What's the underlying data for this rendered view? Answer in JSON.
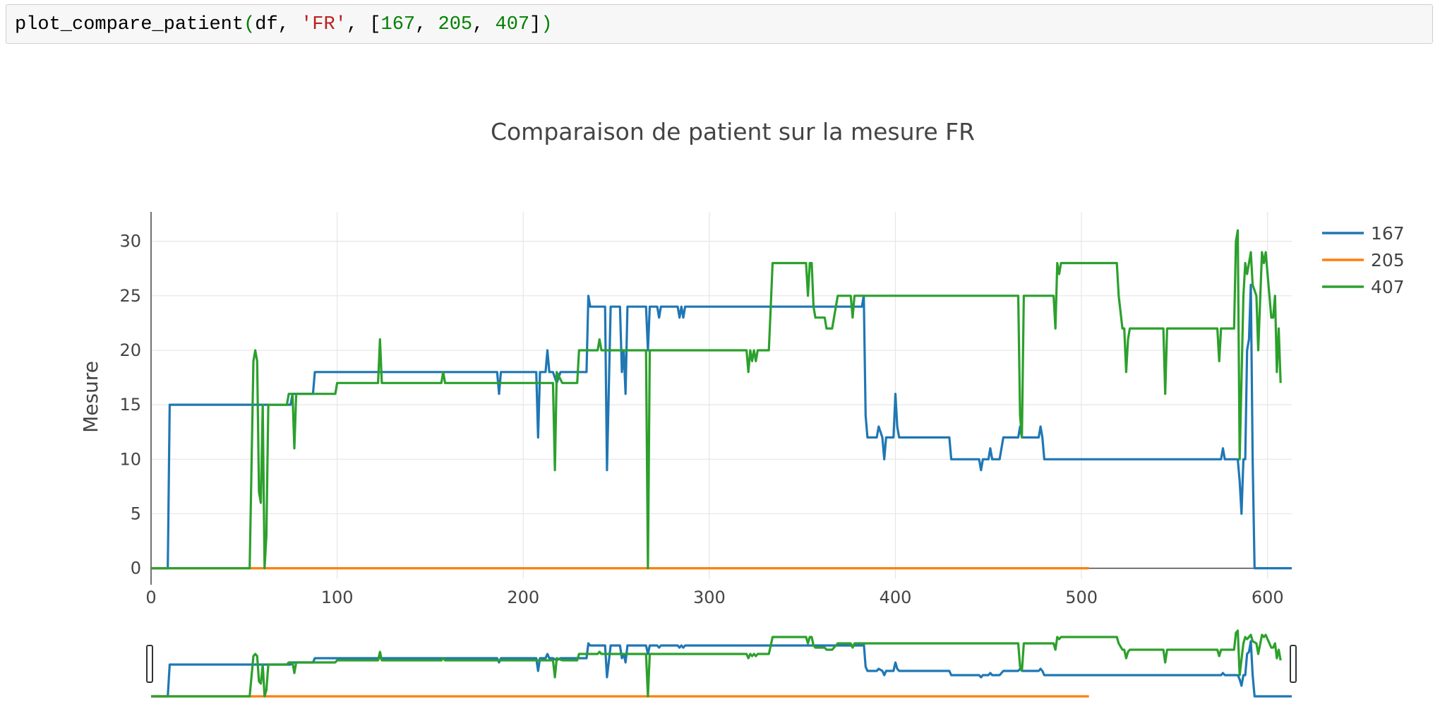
{
  "code_cell": {
    "fn": "plot_compare_patient",
    "open": "(",
    "arg1": "df, ",
    "arg2": "'FR'",
    "sep1": ", [",
    "n1": "167",
    "c1": ", ",
    "n2": "205",
    "c2": ", ",
    "n3": "407",
    "close_bracket": "]",
    "close": ")"
  },
  "chart_data": {
    "type": "line",
    "title": "Comparaison de patient sur la mesure FR",
    "xlabel": "",
    "ylabel": "Mesure",
    "xlim": [
      0,
      613
    ],
    "ylim": [
      -1,
      32.7
    ],
    "xticks": [
      0,
      100,
      200,
      300,
      400,
      500,
      600
    ],
    "yticks": [
      0,
      5,
      10,
      15,
      20,
      25,
      30
    ],
    "grid": true,
    "legend": "top-right",
    "rangeslider": true,
    "series": [
      {
        "name": "167",
        "color": "#1f77b4",
        "points": [
          [
            0,
            0
          ],
          [
            9,
            0
          ],
          [
            10,
            15
          ],
          [
            75,
            15
          ],
          [
            76,
            16
          ],
          [
            87,
            16
          ],
          [
            88,
            18
          ],
          [
            186,
            18
          ],
          [
            187,
            16
          ],
          [
            188,
            18
          ],
          [
            207,
            18
          ],
          [
            208,
            12
          ],
          [
            209,
            18
          ],
          [
            212,
            18
          ],
          [
            213,
            20
          ],
          [
            214,
            18
          ],
          [
            216,
            18
          ],
          [
            218,
            17
          ],
          [
            220,
            18
          ],
          [
            234,
            18
          ],
          [
            235,
            25
          ],
          [
            236,
            24
          ],
          [
            244,
            24
          ],
          [
            245,
            9
          ],
          [
            247,
            24
          ],
          [
            252,
            24
          ],
          [
            253,
            18
          ],
          [
            254,
            20
          ],
          [
            255,
            16
          ],
          [
            256,
            24
          ],
          [
            266,
            24
          ],
          [
            267,
            20
          ],
          [
            268,
            24
          ],
          [
            272,
            24
          ],
          [
            273,
            23
          ],
          [
            274,
            24
          ],
          [
            283,
            24
          ],
          [
            284,
            23
          ],
          [
            285,
            24
          ],
          [
            286,
            23
          ],
          [
            287,
            24
          ],
          [
            382,
            24
          ],
          [
            383,
            25
          ],
          [
            384,
            14
          ],
          [
            385,
            12
          ],
          [
            390,
            12
          ],
          [
            391,
            13
          ],
          [
            393,
            12
          ],
          [
            394,
            10
          ],
          [
            395,
            12
          ],
          [
            399,
            12
          ],
          [
            400,
            16
          ],
          [
            401,
            13
          ],
          [
            402,
            12
          ],
          [
            429,
            12
          ],
          [
            430,
            10
          ],
          [
            445,
            10
          ],
          [
            446,
            9
          ],
          [
            447,
            10
          ],
          [
            450,
            10
          ],
          [
            451,
            11
          ],
          [
            452,
            10
          ],
          [
            456,
            10
          ],
          [
            458,
            12
          ],
          [
            466,
            12
          ],
          [
            467,
            13
          ],
          [
            468,
            12
          ],
          [
            477,
            12
          ],
          [
            478,
            13
          ],
          [
            479,
            12
          ],
          [
            480,
            10
          ],
          [
            575,
            10
          ],
          [
            576,
            11
          ],
          [
            577,
            10
          ],
          [
            584,
            10
          ],
          [
            585,
            8
          ],
          [
            586,
            5
          ],
          [
            587,
            10
          ],
          [
            588,
            10
          ],
          [
            589,
            20
          ],
          [
            590,
            21
          ],
          [
            591,
            26
          ],
          [
            592,
            10
          ],
          [
            593,
            0
          ],
          [
            613,
            0
          ]
        ]
      },
      {
        "name": "205",
        "color": "#ff7f0e",
        "points": [
          [
            0,
            0
          ],
          [
            504,
            0
          ]
        ]
      },
      {
        "name": "407",
        "color": "#2ca02c",
        "points": [
          [
            0,
            0
          ],
          [
            53,
            0
          ],
          [
            55,
            19
          ],
          [
            56,
            20
          ],
          [
            57,
            19
          ],
          [
            58,
            7
          ],
          [
            59,
            6
          ],
          [
            60,
            15
          ],
          [
            61,
            0
          ],
          [
            62,
            3
          ],
          [
            63,
            15
          ],
          [
            73,
            15
          ],
          [
            74,
            16
          ],
          [
            76,
            16
          ],
          [
            77,
            11
          ],
          [
            78,
            16
          ],
          [
            86,
            16
          ],
          [
            99,
            16
          ],
          [
            100,
            17
          ],
          [
            122,
            17
          ],
          [
            123,
            21
          ],
          [
            124,
            17
          ],
          [
            156,
            17
          ],
          [
            157,
            18
          ],
          [
            158,
            17
          ],
          [
            216,
            17
          ],
          [
            217,
            9
          ],
          [
            218,
            18
          ],
          [
            221,
            17
          ],
          [
            229,
            17
          ],
          [
            230,
            20
          ],
          [
            240,
            20
          ],
          [
            241,
            21
          ],
          [
            242,
            20
          ],
          [
            266,
            20
          ],
          [
            267,
            0
          ],
          [
            268,
            20
          ],
          [
            320,
            20
          ],
          [
            321,
            18
          ],
          [
            322,
            20
          ],
          [
            323,
            19
          ],
          [
            324,
            20
          ],
          [
            325,
            19
          ],
          [
            326,
            20
          ],
          [
            332,
            20
          ],
          [
            333,
            24
          ],
          [
            334,
            28
          ],
          [
            352,
            28
          ],
          [
            353,
            25
          ],
          [
            354,
            28
          ],
          [
            355,
            28
          ],
          [
            356,
            24
          ],
          [
            357,
            23
          ],
          [
            362,
            23
          ],
          [
            363,
            22
          ],
          [
            366,
            22
          ],
          [
            369,
            25
          ],
          [
            376,
            25
          ],
          [
            377,
            23
          ],
          [
            378,
            25
          ],
          [
            466,
            25
          ],
          [
            467,
            14
          ],
          [
            468,
            12
          ],
          [
            469,
            25
          ],
          [
            485,
            25
          ],
          [
            486,
            22
          ],
          [
            487,
            28
          ],
          [
            488,
            27
          ],
          [
            489,
            28
          ],
          [
            519,
            28
          ],
          [
            520,
            25
          ],
          [
            522,
            22
          ],
          [
            523,
            22
          ],
          [
            524,
            18
          ],
          [
            525,
            21
          ],
          [
            526,
            22
          ],
          [
            544,
            22
          ],
          [
            545,
            16
          ],
          [
            546,
            22
          ],
          [
            573,
            22
          ],
          [
            574,
            19
          ],
          [
            575,
            22
          ],
          [
            582,
            22
          ],
          [
            583,
            30
          ],
          [
            584,
            31
          ],
          [
            585,
            10
          ],
          [
            587,
            25
          ],
          [
            588,
            28
          ],
          [
            589,
            27
          ],
          [
            590,
            28
          ],
          [
            591,
            29
          ],
          [
            592,
            26
          ],
          [
            594,
            25
          ],
          [
            595,
            20
          ],
          [
            597,
            29
          ],
          [
            598,
            28
          ],
          [
            599,
            29
          ],
          [
            600,
            27
          ],
          [
            601,
            25
          ],
          [
            602,
            23
          ],
          [
            603,
            23
          ],
          [
            604,
            25
          ],
          [
            605,
            18
          ],
          [
            606,
            22
          ],
          [
            607,
            17
          ]
        ]
      }
    ]
  }
}
